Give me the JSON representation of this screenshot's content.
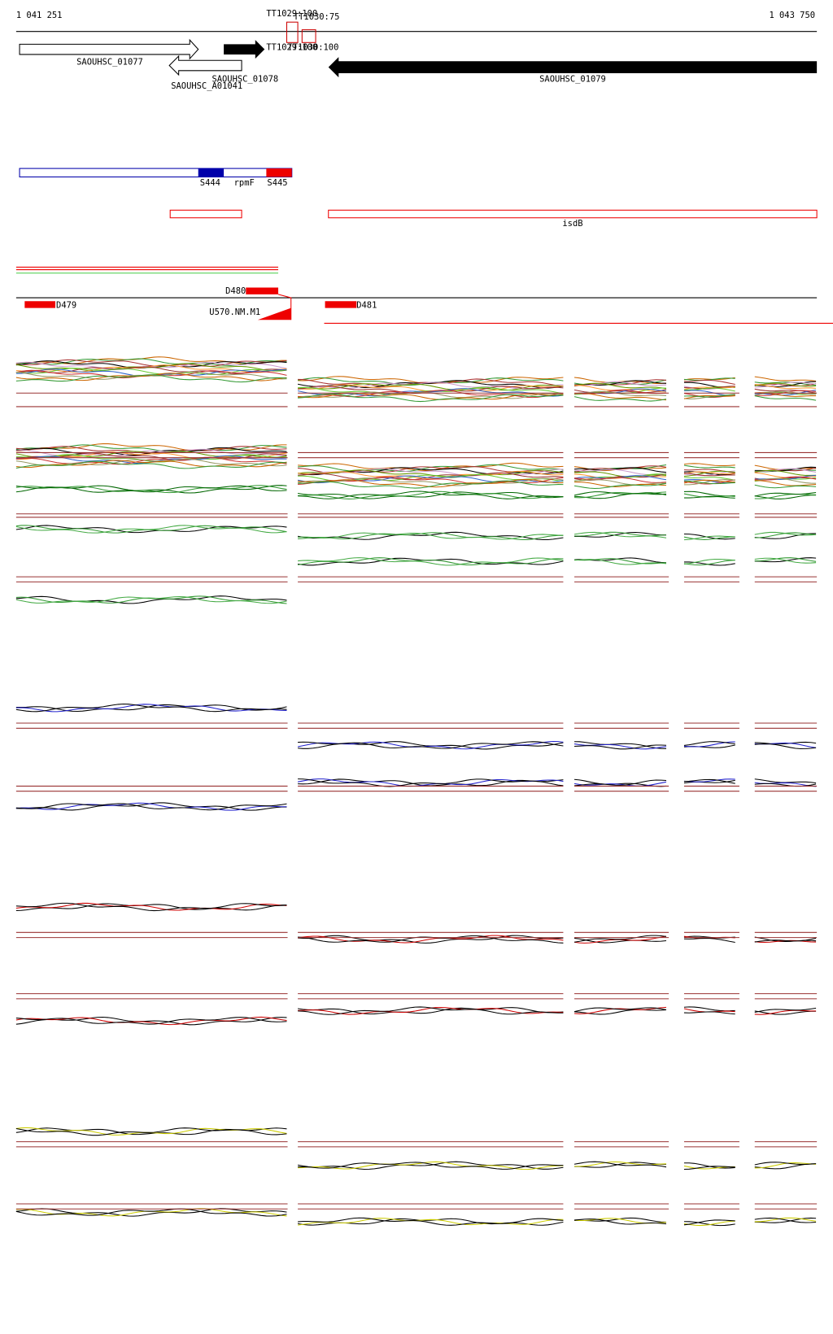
{
  "ruler": {
    "start": "1 041 251",
    "end": "1 043 750"
  },
  "features": {
    "top_a": "TT1029:100",
    "top_b": "TT1030:75",
    "mid_a": "TT1029:100",
    "mid_b": "TT1030:100"
  },
  "genes": [
    "SAOUHSC_01077",
    "SAOUHSC_01078",
    "SAOUHSC_A01041",
    "SAOUHSC_01079"
  ],
  "regions": [
    "S444",
    "rpmF",
    "S445",
    "isdB"
  ],
  "segments": [
    "D480",
    "D479",
    "U570.NM.M1",
    "D481"
  ]
}
